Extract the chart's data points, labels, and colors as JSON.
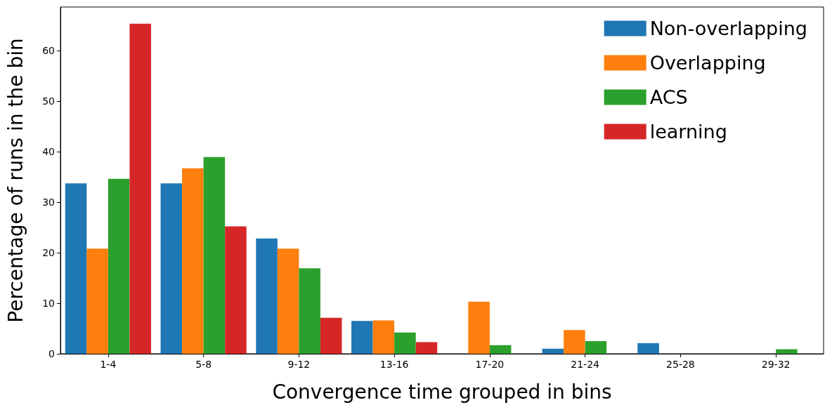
{
  "chart_data": {
    "type": "bar",
    "xlabel": "Convergence time grouped in bins",
    "ylabel": "Percentage of runs in the bin",
    "categories": [
      "1-4",
      "5-8",
      "9-12",
      "13-16",
      "17-20",
      "21-24",
      "25-28",
      "29-32"
    ],
    "series": [
      {
        "name": "Non-overlapping",
        "color": "#1f77b4",
        "values": [
          33.7,
          33.7,
          22.8,
          6.5,
          0,
          1.0,
          2.1,
          0
        ]
      },
      {
        "name": "Overlapping",
        "color": "#ff7f0e",
        "values": [
          20.8,
          36.7,
          20.8,
          6.6,
          10.3,
          4.7,
          0,
          0
        ]
      },
      {
        "name": "ACS",
        "color": "#2ca02c",
        "values": [
          34.6,
          38.9,
          16.9,
          4.2,
          1.7,
          2.5,
          0,
          0.9
        ]
      },
      {
        "name": "learning",
        "color": "#d62728",
        "values": [
          65.3,
          25.2,
          7.1,
          2.3,
          0,
          0,
          0,
          0
        ]
      }
    ],
    "ylim": [
      0,
      68.6
    ],
    "yticks": [
      0,
      10,
      20,
      30,
      40,
      50,
      60
    ],
    "grid": false,
    "legend": "top right"
  }
}
